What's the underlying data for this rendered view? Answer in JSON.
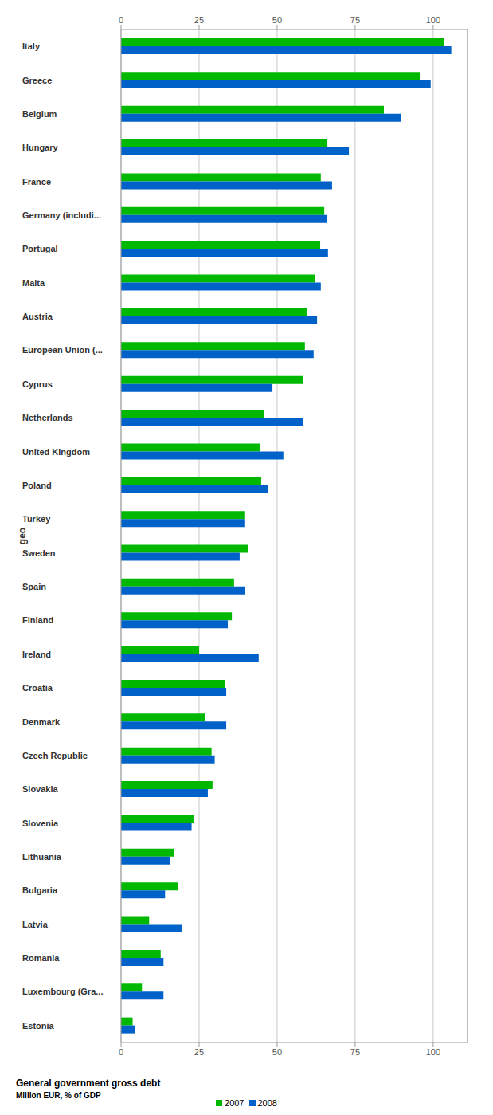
{
  "chart_data": {
    "type": "bar",
    "orientation": "horizontal",
    "title": "General government gross debt",
    "subtitle": "Million EUR, % of GDP",
    "y_label": "geo",
    "categories": [
      "Italy",
      "Greece",
      "Belgium",
      "Hungary",
      "France",
      "Germany (includi...",
      "Portugal",
      "Malta",
      "Austria",
      "European Union (...",
      "Cyprus",
      "Netherlands",
      "United Kingdom",
      "Poland",
      "Turkey",
      "Sweden",
      "Spain",
      "Finland",
      "Ireland",
      "Croatia",
      "Denmark",
      "Czech Republic",
      "Slovakia",
      "Slovenia",
      "Lithuania",
      "Bulgaria",
      "Latvia",
      "Romania",
      "Luxembourg (Gra...",
      "Estonia"
    ],
    "series": [
      {
        "name": "2007",
        "color": "#00b800",
        "values": [
          103.6,
          95.7,
          84.2,
          66.1,
          64.0,
          65.1,
          63.8,
          62.2,
          59.7,
          58.9,
          58.4,
          45.7,
          44.4,
          44.9,
          39.5,
          40.6,
          36.2,
          35.5,
          25.0,
          33.2,
          26.8,
          29.0,
          29.3,
          23.4,
          17.0,
          18.2,
          9.0,
          12.7,
          6.7,
          3.7
        ]
      },
      {
        "name": "2008",
        "color": "#0062c8",
        "values": [
          105.8,
          99.2,
          89.8,
          73.0,
          67.6,
          66.1,
          66.3,
          64.0,
          62.8,
          61.7,
          48.5,
          58.4,
          52.0,
          47.2,
          39.5,
          38.0,
          39.8,
          34.2,
          44.1,
          33.7,
          33.7,
          30.0,
          27.8,
          22.6,
          15.6,
          14.1,
          19.5,
          13.6,
          13.6,
          4.6
        ]
      }
    ],
    "xlim": [
      0,
      111
    ],
    "xticks": [
      0,
      25,
      50,
      75,
      100
    ],
    "grid": true,
    "legend": "bottom"
  }
}
